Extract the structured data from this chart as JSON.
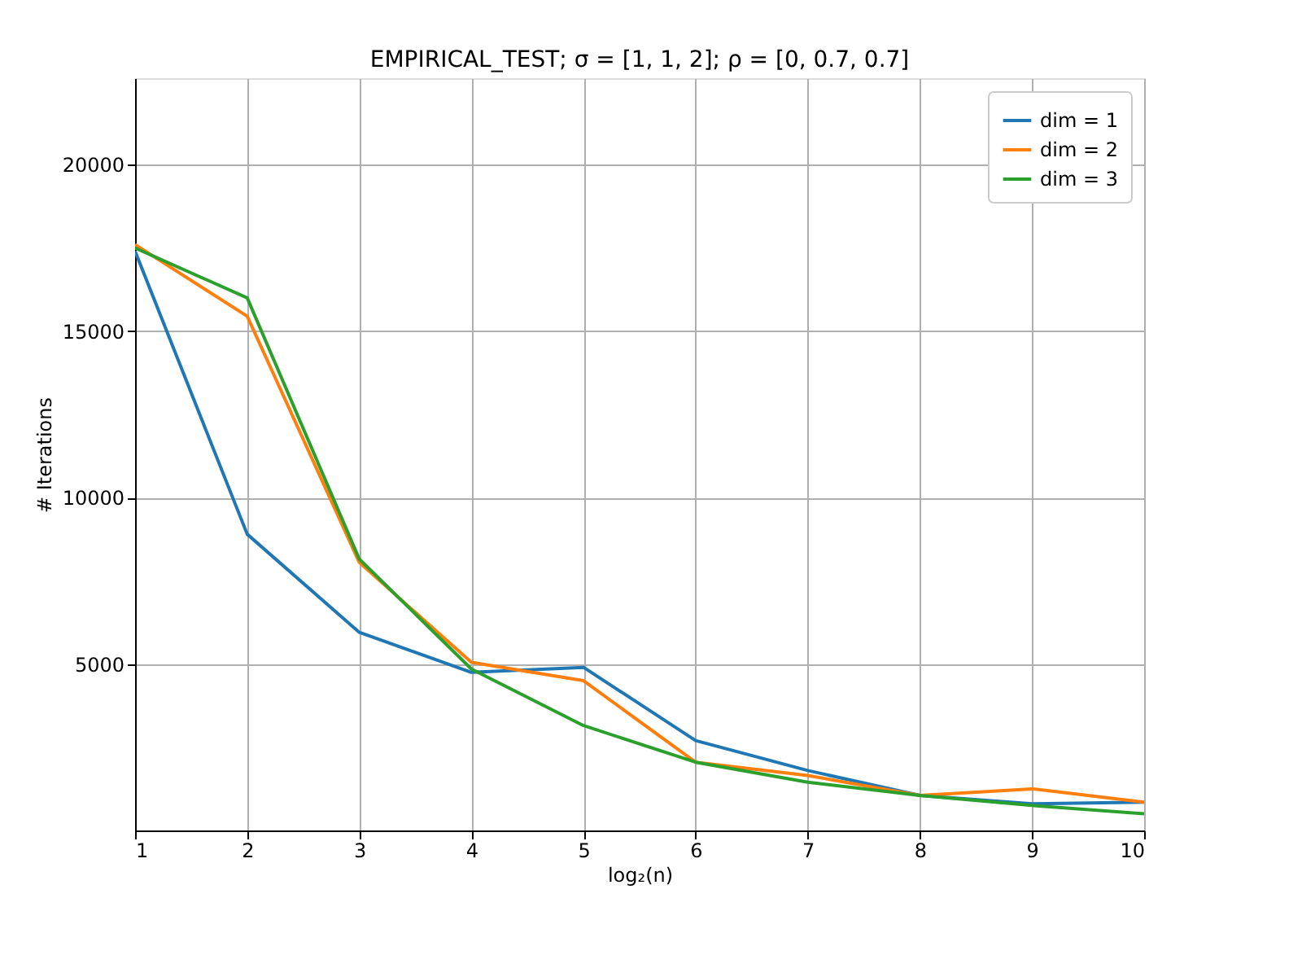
{
  "chart_data": {
    "type": "line",
    "title": "EMPIRICAL_TEST;  σ = [1, 1, 2];  ρ = [0, 0.7, 0.7]",
    "xlabel": "log₂(n)",
    "ylabel": "# Iterations",
    "x": [
      1,
      2,
      3,
      4,
      5,
      6,
      7,
      8,
      9,
      10
    ],
    "series": [
      {
        "name": "dim = 1",
        "color": "#1f77b4",
        "values": [
          17400,
          8900,
          5950,
          4750,
          4900,
          2700,
          1800,
          1050,
          800,
          850
        ]
      },
      {
        "name": "dim = 2",
        "color": "#ff7f0e",
        "values": [
          17600,
          15450,
          8050,
          5050,
          4500,
          2050,
          1650,
          1050,
          1250,
          850
        ]
      },
      {
        "name": "dim = 3",
        "color": "#2ca02c",
        "values": [
          17500,
          16000,
          8150,
          4850,
          3150,
          2050,
          1450,
          1050,
          750,
          500
        ]
      }
    ],
    "xlim": [
      1,
      10
    ],
    "ylim": [
      0,
      22600
    ],
    "xticks": [
      1,
      2,
      3,
      4,
      5,
      6,
      7,
      8,
      9,
      10
    ],
    "yticks": [
      5000,
      10000,
      15000,
      20000
    ],
    "grid": true,
    "legend": "top right",
    "marker": "none",
    "line_style": "solid"
  }
}
